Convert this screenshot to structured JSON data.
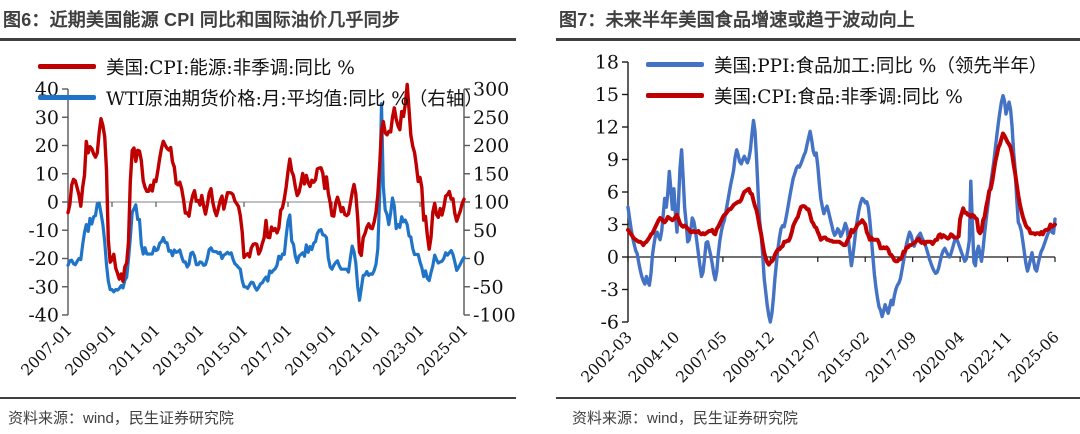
{
  "figures": [
    {
      "title": "图6：近期美国能源 CPI 同比和国际油价几乎同步",
      "source": "资料来源：wind，民生证券研究院"
    },
    {
      "title": "图7：未来半年美国食品增速或趋于波动向上",
      "source": "资料来源：wind，民生证券研究院"
    }
  ],
  "chart_data": [
    {
      "type": "line",
      "title": "图6：近期美国能源 CPI 同比和国际油价几乎同步",
      "x_freq": "monthly",
      "x_tick_labels": [
        "2007-01",
        "2009-01",
        "2011-01",
        "2013-01",
        "2015-01",
        "2017-01",
        "2019-01",
        "2021-01",
        "2023-01",
        "2025-01"
      ],
      "x_tick_month_index": [
        0,
        24,
        48,
        72,
        96,
        120,
        144,
        168,
        192,
        216
      ],
      "axes": {
        "left": {
          "min": -40,
          "max": 40,
          "ticks": [
            40,
            30,
            20,
            10,
            0,
            -10,
            -20,
            -30,
            -40
          ]
        },
        "right": {
          "min": -100,
          "max": 300,
          "ticks": [
            300,
            250,
            200,
            150,
            100,
            50,
            0,
            -50,
            -100
          ],
          "note": "右轴"
        }
      },
      "legend_position": "top-left",
      "grid": false,
      "zero_line": true,
      "series": [
        {
          "name": "美国:CPI:能源:非季调:同比 %",
          "color": "#C00000",
          "axis": "left",
          "z": 2,
          "values": [
            -3.8,
            -1,
            5.9,
            8,
            7.5,
            5,
            2.5,
            -1.5,
            5.3,
            9.5,
            21.4,
            17.4,
            19.6,
            18.9,
            17,
            15.9,
            17.4,
            24.7,
            29.5,
            27.2,
            23.1,
            11.4,
            -13.3,
            -21.3,
            -20.4,
            -18.5,
            -23.4,
            -25.2,
            -27.3,
            -25.5,
            -28.1,
            -23,
            -21.6,
            -14.1,
            7.1,
            18.2,
            19.1,
            14.4,
            18.3,
            18,
            14.7,
            7.5,
            5.2,
            3.8,
            3.8,
            5.9,
            3.9,
            7.7,
            7.3,
            11,
            15.5,
            19,
            21.5,
            20.1,
            19,
            18.4,
            19.3,
            14.2,
            12.4,
            6.6,
            6.1,
            7,
            4.6,
            0.9,
            -3.9,
            -3.9,
            -5,
            -0.6,
            2.3,
            4,
            0.3,
            0.5,
            -1,
            2.3,
            -1.6,
            -4.3,
            -1,
            3.2,
            4.7,
            -0.1,
            -3.1,
            -4.8,
            -2.4,
            0.5,
            2.1,
            -2.5,
            0.4,
            3.3,
            3.3,
            3.2,
            2.6,
            0.4,
            -0.6,
            -1.6,
            -4.8,
            -10.6,
            -19.6,
            -18.8,
            -18.3,
            -19.4,
            -16.3,
            -15,
            -14.8,
            -15,
            -18.4,
            -17.1,
            -14.7,
            -12.6,
            -6.5,
            -12.5,
            -12.6,
            -8.9,
            -10.1,
            -9.4,
            -10.9,
            -9.2,
            -2.9,
            -2,
            1.1,
            5.4,
            10.8,
            15.2,
            10.9,
            9.3,
            5.4,
            2.3,
            3.4,
            6.4,
            10.1,
            6.4,
            9.4,
            6.9,
            5.5,
            7.7,
            7,
            7.9,
            11.7,
            12,
            12.1,
            10.2,
            4.8,
            8.9,
            3.1,
            -0.3,
            -4.8,
            -5,
            -0.4,
            1.7,
            -0.5,
            -3.4,
            -2,
            -4.4,
            -4.8,
            -4.2,
            -0.6,
            3.4,
            6.2,
            2.8,
            -5.7,
            -17.7,
            -18.9,
            -12.6,
            -11.2,
            -9,
            -7.7,
            -9.2,
            -9.4,
            -7,
            -3.6,
            2.4,
            13.2,
            25.1,
            28.5,
            24.5,
            23.8,
            25,
            24.8,
            30,
            33.3,
            29.3,
            27,
            25.6,
            32,
            30.3,
            34.6,
            41.6,
            32.9,
            23.8,
            19.8,
            17.6,
            13.1,
            7.3,
            8.7,
            5.2,
            -6.4,
            -5.1,
            -11.7,
            -16.7,
            -12.5,
            -3.6,
            -0.5,
            -4.5,
            -5.4,
            -2.3,
            -4.6,
            -1.9,
            2.1,
            2.6,
            3.7,
            1,
            1.1,
            -4,
            -6.8,
            -4.9,
            -3.2,
            -0.5,
            1
          ]
        },
        {
          "name": "WTI原油期货价格:月:平均值:同比 %（右轴）",
          "color": "#2074C8",
          "axis": "right",
          "z": 1,
          "values": [
            -12,
            -4,
            -3,
            -9,
            -11,
            -5,
            0,
            -2,
            25,
            46,
            60,
            48,
            71,
            61,
            74,
            76,
            97,
            98,
            80,
            61,
            30,
            -11,
            -40,
            -55,
            -55,
            -59,
            -55,
            -56,
            -53,
            -48,
            -52,
            -39,
            -33,
            -1,
            36,
            82,
            88,
            95,
            69,
            69,
            25,
            8,
            19,
            8,
            8,
            8,
            8,
            20,
            14,
            16,
            27,
            30,
            37,
            28,
            28,
            13,
            14,
            5,
            15,
            11,
            12,
            15,
            3,
            -6,
            -6,
            -15,
            -10,
            9,
            11,
            4,
            -11,
            -11,
            -6,
            -7,
            -12,
            -11,
            0,
            16,
            19,
            13,
            12,
            12,
            9,
            11,
            0,
            6,
            8,
            11,
            8,
            10,
            -1,
            -9,
            -12,
            -16,
            -19,
            -39,
            -50,
            -50,
            -53,
            -47,
            -42,
            -43,
            -51,
            -56,
            -51,
            -45,
            -43,
            -37,
            -33,
            -40,
            -22,
            -25,
            -21,
            -18,
            -12,
            4,
            -1,
            8,
            7,
            40,
            66,
            77,
            31,
            25,
            4,
            -7,
            4,
            7,
            10,
            4,
            24,
            11,
            21,
            16,
            27,
            30,
            44,
            50,
            51,
            42,
            41,
            37,
            1,
            -15,
            -19,
            -12,
            -7,
            -4,
            -13,
            -19,
            -19,
            -19,
            -19,
            -24,
            0,
            22,
            12,
            -8,
            -50,
            -74,
            -53,
            -30,
            -29,
            -23,
            -30,
            -27,
            -28,
            -21,
            -10,
            17,
            113,
            274,
            128,
            86,
            78,
            60,
            81,
            107,
            93,
            53,
            60,
            55,
            74,
            65,
            68,
            60,
            40,
            38,
            18,
            7,
            7,
            7,
            -6,
            -16,
            -32,
            -22,
            -35,
            -39,
            -25,
            -13,
            6,
            -2,
            -8,
            -6,
            -5,
            0,
            10,
            6,
            10,
            14,
            7,
            -6,
            -21,
            -16,
            -10,
            -3,
            2
          ]
        }
      ]
    },
    {
      "type": "line",
      "title": "图7：未来半年美国食品增速或趋于波动向上",
      "x_freq": "monthly",
      "x_tick_labels": [
        "2002-03",
        "2004-10",
        "2007-05",
        "2009-12",
        "2012-07",
        "2015-02",
        "2017-09",
        "2020-04",
        "2022-11",
        "2025-06"
      ],
      "x_tick_month_index": [
        0,
        31,
        62,
        93,
        124,
        155,
        186,
        217,
        248,
        279
      ],
      "axes": {
        "left": {
          "min": -6,
          "max": 18,
          "ticks": [
            18,
            15,
            12,
            9,
            6,
            3,
            0,
            -3,
            -6
          ]
        }
      },
      "legend_position": "top-left",
      "grid": false,
      "zero_line": true,
      "series": [
        {
          "name": "美国:PPI:食品加工:同比 %（领先半年）",
          "color": "#4472C4",
          "axis": "left",
          "z": 1,
          "values": [
            4.6,
            3.6,
            2.6,
            1.8,
            1.2,
            0.6,
            0.3,
            -0.5,
            -1.2,
            -1.8,
            -2.2,
            -2.5,
            -1.8,
            -2.3,
            -2.6,
            -1.5,
            0.2,
            1.2,
            2,
            2.3,
            1.9,
            1.6,
            2.4,
            3.9,
            5.4,
            4.6,
            5.9,
            7.9,
            6.2,
            4.4,
            6.3,
            4,
            2.3,
            5.1,
            8.2,
            9.9,
            7.4,
            4.6,
            3.1,
            1.4,
            1.6,
            2.4,
            3.6,
            3.3,
            2.5,
            1.4,
            0.3,
            -0.8,
            -1.8,
            -1.4,
            -0.2,
            1.3,
            1.4,
            0.8,
            0.2,
            -0.6,
            -1.5,
            -2.1,
            -1.3,
            0.3,
            1.5,
            2.4,
            3,
            3.4,
            4.2,
            5,
            5.8,
            6.6,
            7.3,
            8,
            9.2,
            9.9,
            9.4,
            8.8,
            8.6,
            9,
            9.3,
            9,
            8.7,
            9.1,
            9.9,
            11.4,
            12.6,
            11.6,
            9,
            6,
            3.4,
            2,
            0.2,
            -2,
            -3.2,
            -4.5,
            -5.4,
            -6,
            -5.2,
            -3.8,
            -2,
            -0.5,
            0.8,
            1.8,
            2.6,
            2.9,
            2.8,
            3.4,
            4.2,
            5,
            5.8,
            6.6,
            7.3,
            7.7,
            8.2,
            8.4,
            8.3,
            8.6,
            9,
            9.4,
            9.7,
            10.4,
            11,
            11.6,
            10.8,
            9.8,
            9.4,
            9.6,
            8.4,
            6.8,
            5.4,
            4.6,
            4,
            4.4,
            4.7,
            4.2,
            3.6,
            3,
            2.4,
            2,
            2.2,
            2.6,
            2.4,
            1.9,
            2.2,
            2.6,
            3.1,
            2.7,
            1.6,
            0.4,
            -0.8,
            0.2,
            1.4,
            2.6,
            3.6,
            4.4,
            5,
            5.4,
            5.3,
            5,
            5.1,
            4.6,
            3.4,
            1.8,
            0,
            -1.6,
            -2.8,
            -3.8,
            -4.6,
            -4.9,
            -5.5,
            -5,
            -4.4,
            -4.8,
            -5.2,
            -4.6,
            -4,
            -4.4,
            -3.6,
            -3,
            -2.6,
            -2.4,
            -2,
            -1.2,
            -0.4,
            0.4,
            1.2,
            1.8,
            2.3,
            2,
            1.4,
            1,
            1.4,
            1.8,
            2,
            2.2,
            1.8,
            1.5,
            1.2,
            0.8,
            0.3,
            -0.2,
            -0.6,
            -1,
            -1.3,
            -1.5,
            -1.4,
            -1,
            -0.4,
            0.2,
            0.6,
            0.8,
            0.5,
            0.2,
            0,
            0.3,
            0.8,
            1.3,
            1.8,
            1.6,
            1.2,
            0.8,
            0.4,
            0,
            -0.4,
            -0.2,
            0.6,
            1.5,
            7,
            3,
            -0.5,
            -0.8,
            0.5,
            1,
            0.3,
            -0.4,
            0.8,
            2.2,
            3.4,
            4.6,
            5.8,
            6.8,
            7.8,
            8.8,
            10,
            11.2,
            12.4,
            13.4,
            14.3,
            14.9,
            14.4,
            13.2,
            13.8,
            14.3,
            13.6,
            12,
            9.6,
            8,
            5.4,
            3.2,
            2.9,
            2.4,
            1.4,
            0.4,
            -0.6,
            -1.3,
            -0.8,
            -0.2,
            0.4,
            -0.4,
            -1.1,
            -1.3,
            -0.6,
            0,
            0.5,
            0.8,
            1.2,
            1.6,
            2,
            2.4,
            2.6,
            2.3,
            2.2,
            3.5
          ]
        },
        {
          "name": "美国:CPI:食品:非季调:同比 %",
          "color": "#C00000",
          "axis": "left",
          "z": 2,
          "values": [
            2.5,
            2.3,
            2.1,
            1.9,
            1.7,
            1.6,
            1.5,
            1.4,
            1.4,
            1.3,
            1.1,
            1.3,
            1.4,
            1.6,
            1.8,
            2.1,
            2.2,
            2.5,
            2.8,
            3.1,
            3.4,
            3.6,
            3.5,
            3.3,
            3.2,
            3.4,
            3.7,
            3.6,
            3.5,
            3.4,
            3.5,
            3.7,
            3.9,
            3.5,
            3.1,
            2.9,
            2.8,
            2.9,
            2.8,
            2.6,
            2.5,
            2.3,
            2.3,
            2.4,
            2.3,
            2.3,
            2.4,
            2.2,
            2.1,
            2.2,
            2.1,
            2.2,
            2.3,
            2.4,
            2.4,
            2.5,
            2.2,
            2.1,
            2.6,
            2.8,
            3.1,
            3.4,
            3.7,
            3.9,
            4,
            4.2,
            4.4,
            4.4,
            4.6,
            4.8,
            4.9,
            5,
            5.1,
            5.1,
            5.3,
            5.7,
            6,
            6.1,
            6.2,
            6.3,
            5.9,
            5.8,
            5.2,
            4.7,
            4.3,
            3.6,
            2.8,
            2.1,
            1.2,
            0.4,
            -0.1,
            -0.5,
            -0.7,
            -0.5,
            -0.4,
            -0.2,
            0.2,
            0.5,
            0.7,
            0.7,
            0.9,
            1,
            1.4,
            1.4,
            1.5,
            1.5,
            1.8,
            2.3,
            2.9,
            3.2,
            3.5,
            3.7,
            4.2,
            4.6,
            4.7,
            4.7,
            4.6,
            4.4,
            4.4,
            3.9,
            3.3,
            3.1,
            2.8,
            2.7,
            2.3,
            2,
            1.6,
            1.7,
            1.8,
            1.8,
            1.6,
            1.6,
            1.5,
            1.5,
            1.4,
            1.4,
            1.4,
            1.4,
            1.4,
            1.3,
            1.2,
            1.1,
            1.1,
            1.4,
            1.7,
            1.9,
            2.5,
            2.3,
            2.5,
            2.7,
            3,
            3.1,
            3.2,
            3.4,
            3.2,
            3,
            2.3,
            2,
            1.6,
            1.8,
            1.6,
            1.6,
            1.6,
            1.6,
            1.3,
            0.8,
            0.8,
            0.9,
            0.8,
            0.9,
            0.7,
            0.3,
            0.2,
            0,
            -0.3,
            -0.4,
            -0.4,
            -0.2,
            -0.2,
            0,
            0.5,
            0.5,
            0.9,
            0.9,
            1.1,
            1.1,
            1.2,
            1.3,
            1.4,
            1.6,
            1.7,
            1.4,
            1.3,
            1.4,
            1.2,
            1.4,
            1.4,
            1.4,
            1.4,
            1.2,
            1.4,
            1.6,
            1.6,
            2,
            2.1,
            1.8,
            2,
            1.9,
            1.8,
            1.7,
            1.8,
            2.1,
            2,
            1.8,
            1.8,
            1.8,
            1.9,
            3.5,
            4,
            4.5,
            4.1,
            4.1,
            3.9,
            3.9,
            3.7,
            3.9,
            3.8,
            3.6,
            3.5,
            2.4,
            2.2,
            2.4,
            3.4,
            3.7,
            4.6,
            5.3,
            6.1,
            6.3,
            7,
            7.9,
            8.8,
            9.4,
            10.1,
            10.4,
            10.9,
            11.4,
            11.2,
            10.9,
            10.6,
            10.4,
            10.1,
            9.5,
            8.5,
            7.7,
            6.7,
            5.7,
            4.9,
            4.3,
            3.7,
            3.3,
            2.9,
            2.7,
            2.6,
            2.2,
            2.2,
            2.2,
            2.1,
            2.2,
            2.2,
            2.1,
            2.3,
            2.1,
            2.4,
            2.5,
            2.5,
            2.6,
            3,
            2.8,
            2.9,
            3
          ]
        }
      ]
    }
  ]
}
